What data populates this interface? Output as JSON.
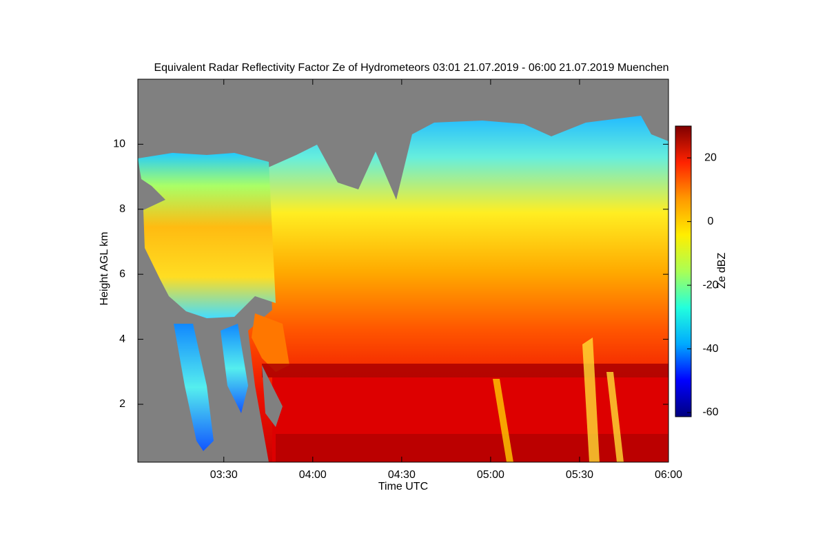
{
  "chart_data": {
    "type": "heatmap",
    "title": "Equivalent Radar Reflectivity Factor Ze of Hydrometeors   03:01 21.07.2019 - 06:00 21.07.2019 Muenchen",
    "x_label": "Time UTC",
    "y_label": "Height AGL km",
    "xlim": [
      "03:01",
      "06:00"
    ],
    "xticks": [
      "03:30",
      "04:00",
      "04:30",
      "05:00",
      "05:30",
      "06:00"
    ],
    "ylim": [
      0.22,
      12
    ],
    "yticks": [
      2,
      4,
      6,
      8,
      10
    ],
    "colorbar_label": "Ze dBZ",
    "clim": [
      -61.3,
      30
    ],
    "cticks": [
      -60,
      -40,
      -20,
      0,
      20
    ],
    "colormap": "jet"
  }
}
